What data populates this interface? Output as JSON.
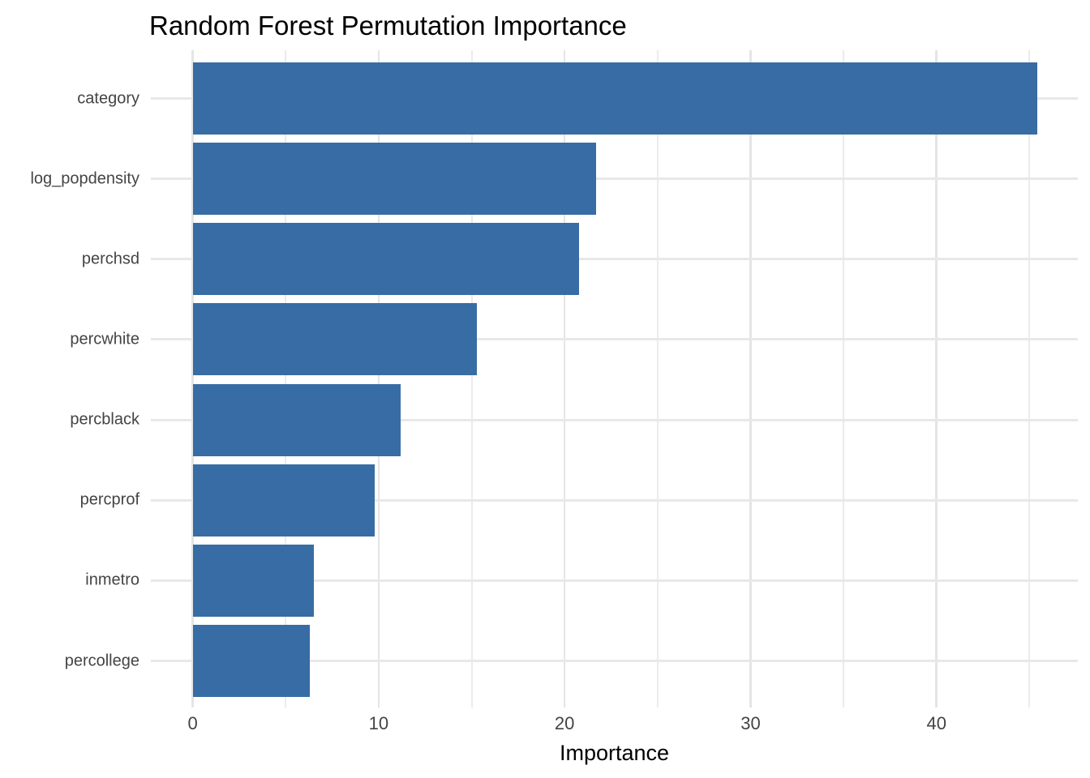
{
  "title": "Random Forest Permutation Importance",
  "chart_data": {
    "type": "bar",
    "orientation": "horizontal",
    "title": "Random Forest Permutation Importance",
    "xlabel": "Importance",
    "ylabel": "",
    "categories": [
      "category",
      "log_popdensity",
      "perchsd",
      "percwhite",
      "percblack",
      "percprof",
      "inmetro",
      "percollege"
    ],
    "values": [
      45.4,
      21.7,
      20.8,
      15.3,
      11.2,
      9.8,
      6.5,
      6.3
    ],
    "xlim": [
      -2.25,
      47.6
    ],
    "x_major_ticks": [
      0,
      10,
      20,
      30,
      40
    ],
    "x_tick_labels": [
      "0",
      "10",
      "20",
      "30",
      "40"
    ],
    "x_minor_gridlines": [
      5,
      15,
      25,
      35,
      45
    ],
    "grid": true,
    "legend": "none",
    "bar_color": "#386CA4",
    "grid_major_color": "#e5e5e5",
    "grid_minor_color": "#ebebeb",
    "axis_text_color": "#444444",
    "title_color": "#000000",
    "background": "#ffffff"
  }
}
